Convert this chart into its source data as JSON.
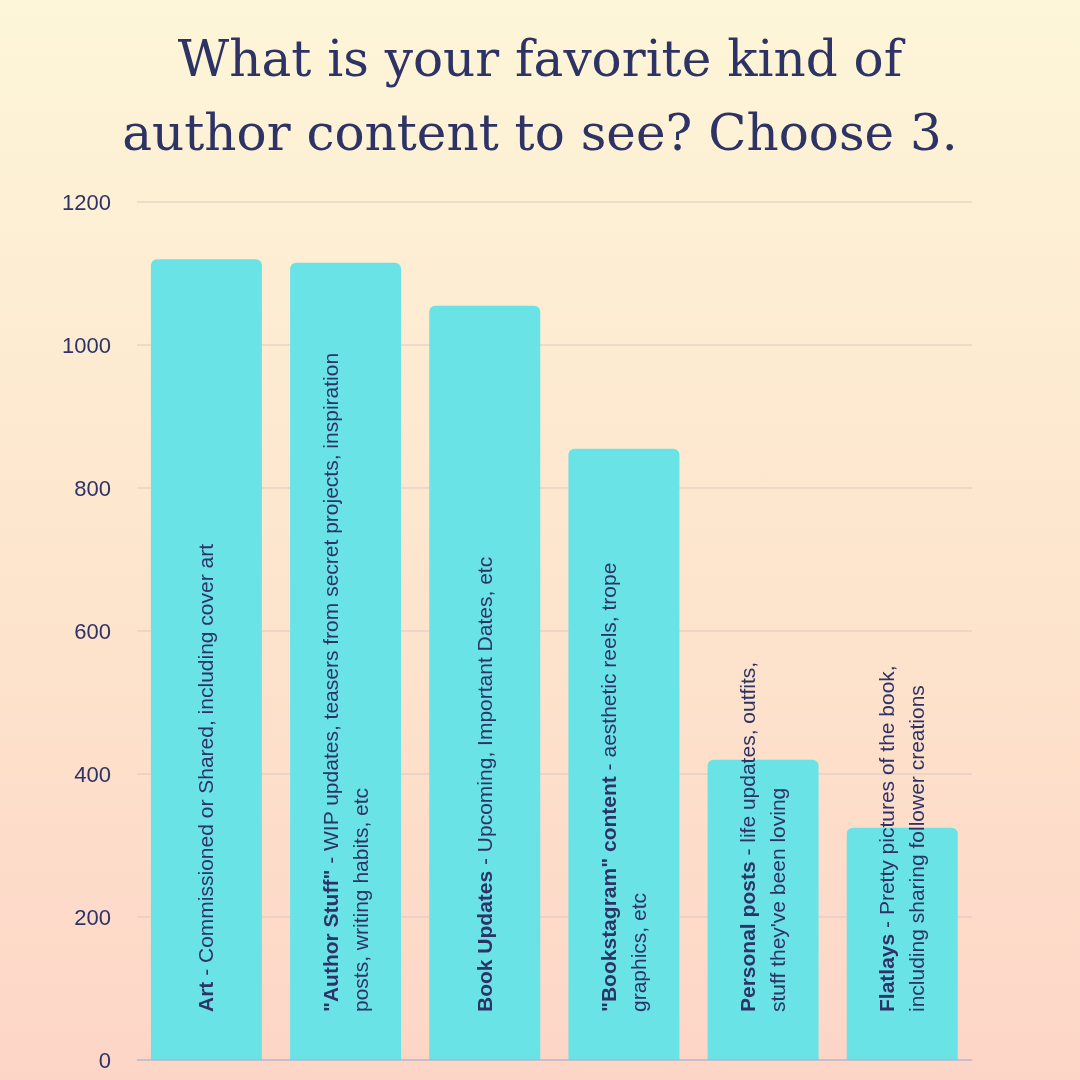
{
  "chart_data": {
    "type": "bar",
    "title": "What is your favorite kind of author content to see? Choose 3.",
    "categories": [
      "Art - Commissioned or Shared, including cover art",
      "\"Author Stuff\" - WIP updates, teasers from secret projects, inspiration posts, writing habits, etc",
      "Book Updates - Upcoming, Important Dates, etc",
      "\"Bookstagram\" content - aesthetic reels, trope graphics, etc",
      "Personal posts - life updates, outfits, stuff they've been loving",
      "Flatlays - Pretty pictures of the book, including sharing follower creations"
    ],
    "values": [
      1120,
      1115,
      1055,
      855,
      420,
      325
    ],
    "color": "#6ae3e6",
    "ylim": [
      0,
      1200
    ],
    "yticks": [
      0,
      200,
      400,
      600,
      800,
      1000,
      1200
    ],
    "grid": "y",
    "tick_labels": "y"
  }
}
